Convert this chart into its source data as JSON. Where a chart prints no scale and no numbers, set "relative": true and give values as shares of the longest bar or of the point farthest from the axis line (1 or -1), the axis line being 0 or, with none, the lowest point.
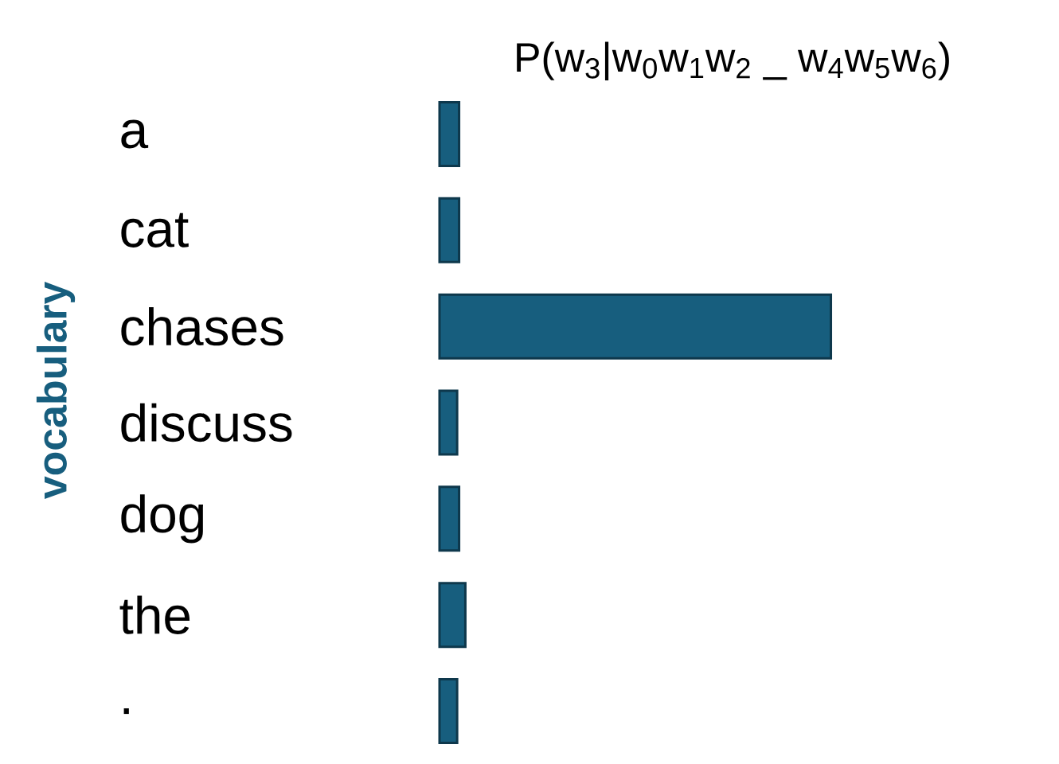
{
  "chart_data": {
    "type": "bar",
    "orientation": "horizontal",
    "relative": true,
    "title": "P(w$_{3}$|w$_{0}$w$_{1}$w$_{2}$ _ w$_{4}$w$_{5}$w$_{6}$)",
    "ylabel": "vocabulary",
    "categories": [
      "a",
      "cat",
      "chases",
      "discuss",
      "dog",
      "the",
      "."
    ],
    "values": [
      0.05,
      0.05,
      1,
      0.045,
      0.05,
      0.066,
      0.045
    ],
    "color": "#175e7e"
  }
}
